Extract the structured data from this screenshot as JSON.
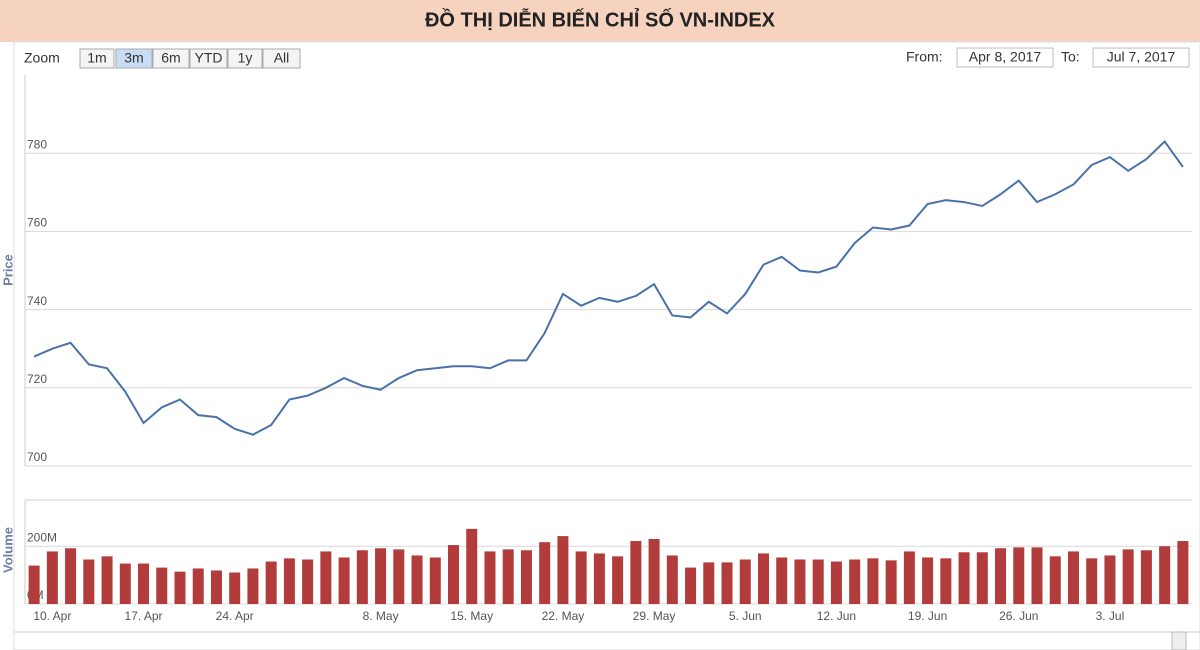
{
  "header": {
    "title": "ĐỒ THỊ DIỄN BIẾN CHỈ SỐ VN-INDEX"
  },
  "controls": {
    "zoom_label": "Zoom",
    "zoom_buttons": [
      "1m",
      "3m",
      "6m",
      "YTD",
      "1y",
      "All"
    ],
    "active_button": 1,
    "from_label": "From:",
    "from": "Apr 8, 2017",
    "to_label": "To:",
    "to": "Jul 7, 2017"
  },
  "chart_data": [
    {
      "type": "line",
      "y_label": "Price",
      "color": "#4a72a8",
      "grid": true,
      "ylim": [
        700,
        800
      ],
      "yticks": [
        700,
        720,
        740,
        760,
        780
      ],
      "values": [
        728,
        730,
        731.5,
        726,
        725,
        719,
        711,
        715,
        717,
        713,
        712.5,
        709.5,
        708,
        710.5,
        717,
        718,
        720,
        722.5,
        720.5,
        719.5,
        722.5,
        724.5,
        725,
        725.5,
        725.5,
        725,
        727,
        727,
        734,
        744,
        741,
        743,
        742,
        743.5,
        746.5,
        738.5,
        738,
        742,
        739,
        744,
        751.5,
        753.5,
        750,
        749.5,
        751,
        757,
        761,
        760.5,
        761.5,
        767,
        768,
        767.5,
        766.5,
        769.5,
        773,
        767.5,
        769.5,
        772,
        777,
        779,
        775.5,
        778.5,
        783,
        776.5
      ]
    },
    {
      "type": "bar",
      "y_label": "Volume",
      "color": "#b23b3b",
      "grid": true,
      "ylim": [
        0,
        360000000
      ],
      "yticks": [
        {
          "value": 0,
          "label": "0M"
        },
        {
          "value": 200000000,
          "label": "200M"
        }
      ],
      "categories": [
        null,
        "10. Apr",
        null,
        null,
        null,
        null,
        "17. Apr",
        null,
        null,
        null,
        null,
        "24. Apr",
        null,
        null,
        null,
        null,
        null,
        null,
        null,
        "8. May",
        null,
        null,
        null,
        null,
        "15. May",
        null,
        null,
        null,
        null,
        "22. May",
        null,
        null,
        null,
        null,
        "29. May",
        null,
        null,
        null,
        null,
        "5. Jun",
        null,
        null,
        null,
        null,
        "12. Jun",
        null,
        null,
        null,
        null,
        "19. Jun",
        null,
        null,
        null,
        null,
        "26. Jun",
        null,
        null,
        null,
        null,
        "3. Jul",
        null,
        null,
        null,
        null
      ],
      "values": [
        133000000,
        182000000,
        193000000,
        154000000,
        165000000,
        140000000,
        140000000,
        126000000,
        112000000,
        123000000,
        116000000,
        109000000,
        123000000,
        147000000,
        158000000,
        154000000,
        182000000,
        161000000,
        186000000,
        193000000,
        189000000,
        168000000,
        161000000,
        204000000,
        260000000,
        182000000,
        189000000,
        186000000,
        214000000,
        235000000,
        182000000,
        175000000,
        165000000,
        218000000,
        225000000,
        168000000,
        126000000,
        144000000,
        144000000,
        154000000,
        175000000,
        161000000,
        154000000,
        154000000,
        147000000,
        154000000,
        158000000,
        151000000,
        182000000,
        161000000,
        158000000,
        179000000,
        179000000,
        193000000,
        196000000,
        196000000,
        165000000,
        182000000,
        158000000,
        168000000,
        189000000,
        186000000,
        200000000,
        218000000
      ]
    }
  ]
}
